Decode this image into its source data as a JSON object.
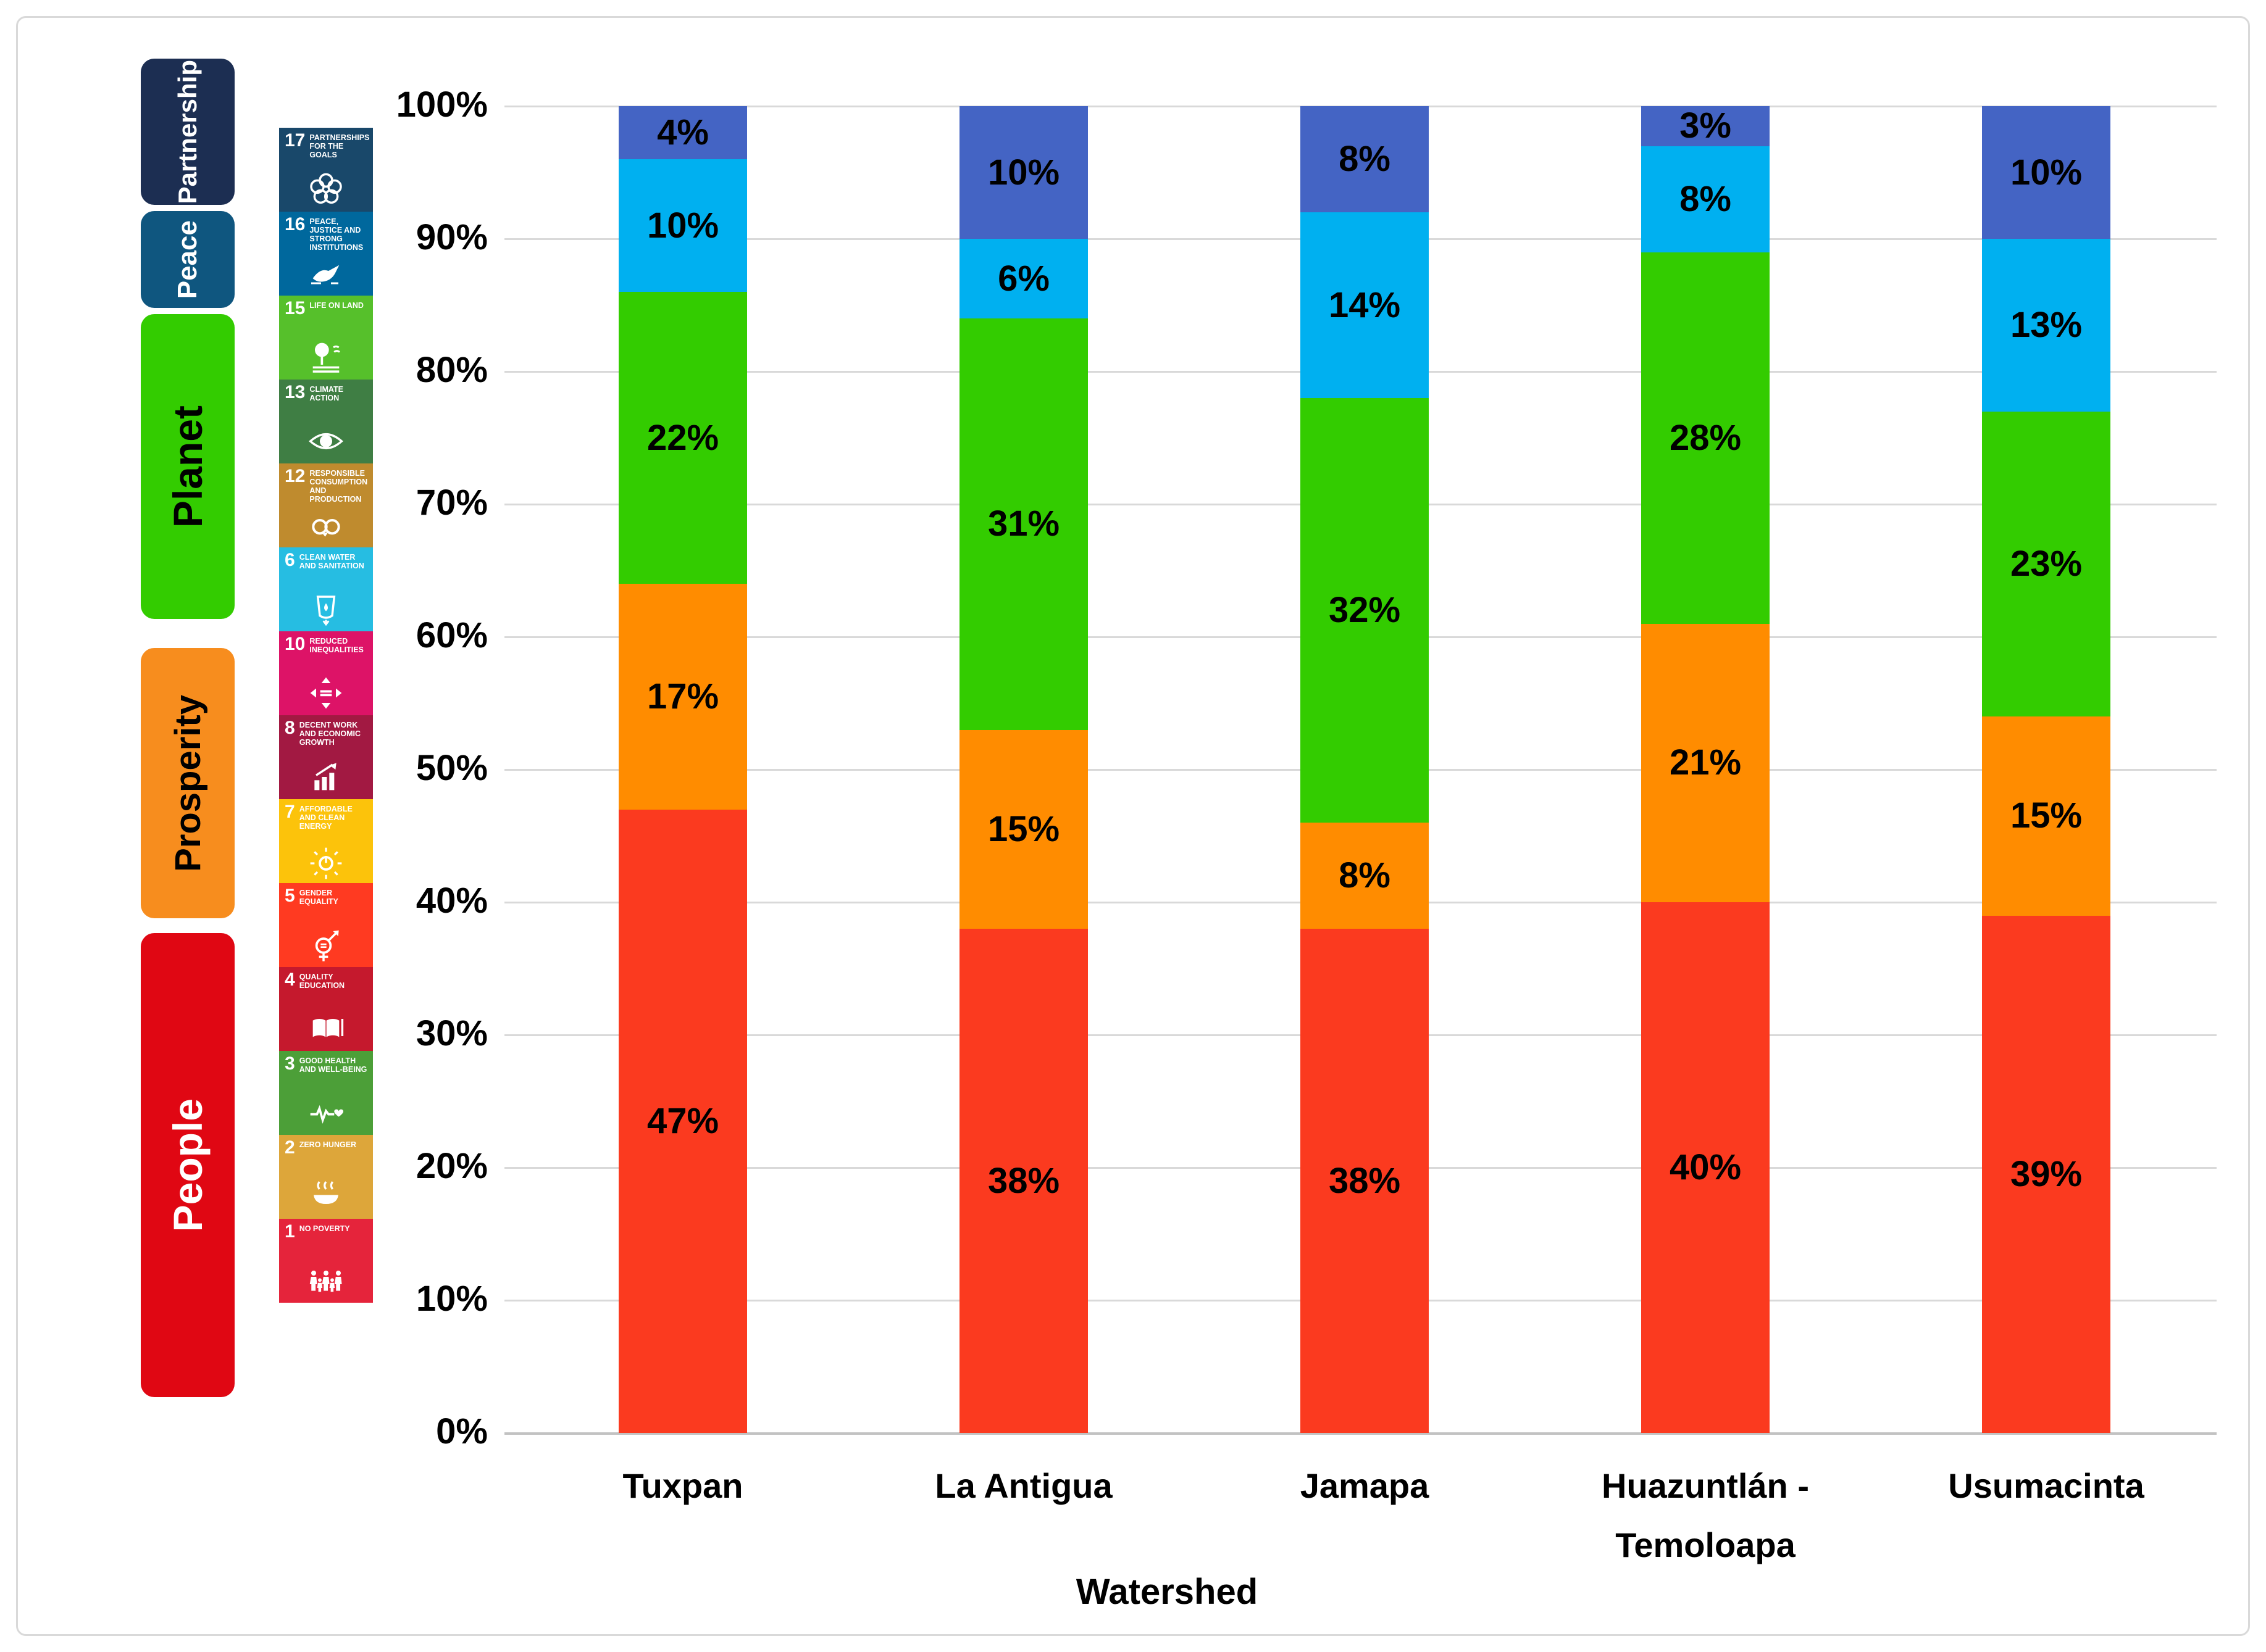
{
  "legend": {
    "groups": [
      {
        "label": "Partnership",
        "color": "#1C2E52",
        "text_color": "#FFFFFF",
        "sdgs": [
          "17"
        ]
      },
      {
        "label": "Peace",
        "color": "#0F567F",
        "text_color": "#FFFFFF",
        "sdgs": [
          "16"
        ]
      },
      {
        "label": "Planet",
        "color": "#33CC00",
        "text_color": "#000000",
        "sdgs": [
          "15",
          "13",
          "12",
          "6"
        ]
      },
      {
        "label": "Prosperity",
        "color": "#F78D1E",
        "text_color": "#000000",
        "sdgs": [
          "10",
          "8",
          "7"
        ]
      },
      {
        "label": "People",
        "color": "#E00713",
        "text_color": "#FFFFFF",
        "sdgs": [
          "5",
          "4",
          "3",
          "2",
          "1"
        ]
      }
    ],
    "sdg_tiles": [
      {
        "number": "17",
        "title": "Partnerships for the Goals",
        "color": "#19486A",
        "icon": "rings-icon"
      },
      {
        "number": "16",
        "title": "Peace, Justice and Strong Institutions",
        "color": "#00689D",
        "icon": "dove-icon"
      },
      {
        "number": "15",
        "title": "Life on Land",
        "color": "#56C02B",
        "icon": "tree-icon"
      },
      {
        "number": "13",
        "title": "Climate Action",
        "color": "#3F7E44",
        "icon": "eye-icon"
      },
      {
        "number": "12",
        "title": "Responsible Consumption and Production",
        "color": "#BF8B2E",
        "icon": "infinity-icon"
      },
      {
        "number": "6",
        "title": "Clean Water and Sanitation",
        "color": "#26BDE2",
        "icon": "water-glass-icon"
      },
      {
        "number": "10",
        "title": "Reduced Inequalities",
        "color": "#DD1367",
        "icon": "equality-icon"
      },
      {
        "number": "8",
        "title": "Decent Work and Economic Growth",
        "color": "#A21942",
        "icon": "growth-icon"
      },
      {
        "number": "7",
        "title": "Affordable and Clean Energy",
        "color": "#FCC30B",
        "icon": "sun-icon"
      },
      {
        "number": "5",
        "title": "Gender Equality",
        "color": "#FF3A21",
        "icon": "gender-icon"
      },
      {
        "number": "4",
        "title": "Quality Education",
        "color": "#C5192D",
        "icon": "book-icon"
      },
      {
        "number": "3",
        "title": "Good Health and Well-Being",
        "color": "#4C9F38",
        "icon": "ecg-heart-icon"
      },
      {
        "number": "2",
        "title": "Zero Hunger",
        "color": "#DDA63A",
        "icon": "bowl-icon"
      },
      {
        "number": "1",
        "title": "No Poverty",
        "color": "#E5243B",
        "icon": "family-icon"
      }
    ]
  },
  "chart_data": {
    "type": "bar",
    "stacked": true,
    "percent_stacked": true,
    "categories": [
      "Tuxpan",
      "La Antigua",
      "Jamapa",
      "Huazuntlán - Temoloapa",
      "Usumacinta"
    ],
    "series": [
      {
        "name": "People",
        "color": "#FB3A1F",
        "values": [
          47,
          38,
          38,
          40,
          39
        ]
      },
      {
        "name": "Prosperity",
        "color": "#FF8C00",
        "values": [
          17,
          15,
          8,
          21,
          15
        ]
      },
      {
        "name": "Planet",
        "color": "#33CC00",
        "values": [
          22,
          31,
          32,
          28,
          23
        ]
      },
      {
        "name": "Peace",
        "color": "#00B0F0",
        "values": [
          10,
          6,
          14,
          8,
          13
        ]
      },
      {
        "name": "Partnership",
        "color": "#4464C4",
        "values": [
          4,
          10,
          8,
          3,
          10
        ]
      }
    ],
    "data_labels": [
      "4%",
      "10%",
      "22%",
      "17%",
      "47%",
      "10%",
      "6%",
      "31%",
      "15%",
      "38%",
      "8%",
      "14%",
      "32%",
      "8%",
      "38%",
      "3%",
      "8%",
      "28%",
      "21%",
      "40%",
      "10%",
      "13%",
      "23%",
      "15%",
      "39%"
    ],
    "xlabel": "Watershed",
    "ylabel": "",
    "ylim": [
      0,
      100
    ],
    "yticks": [
      "0%",
      "10%",
      "20%",
      "30%",
      "40%",
      "50%",
      "60%",
      "70%",
      "80%",
      "90%",
      "100%"
    ],
    "grid": true,
    "gridline_color": "#D9D9D9",
    "legend_position": "left"
  }
}
